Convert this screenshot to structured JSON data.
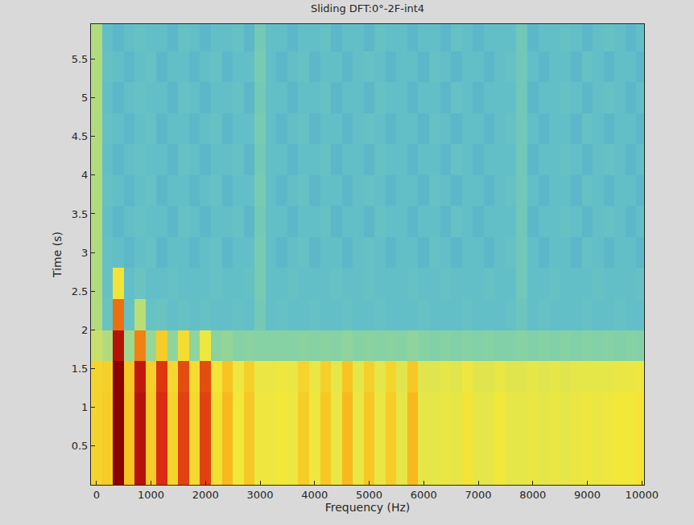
{
  "chart_data": {
    "type": "heatmap",
    "title": "Sliding DFT:0°-2F-int4",
    "x_label": "Frequency (Hz)",
    "y_label": "Time (s)",
    "xlim": [
      -100,
      10040
    ],
    "ylim": [
      0,
      5.95
    ],
    "xticks": [
      0,
      1000,
      2000,
      3000,
      4000,
      5000,
      6000,
      7000,
      8000,
      9000,
      10000
    ],
    "yticks": [
      0.5,
      1,
      1.5,
      2,
      2.5,
      3,
      3.5,
      4,
      4.5,
      5,
      5.5
    ],
    "zlim": [
      0,
      10
    ],
    "x": [
      0,
      200,
      400,
      600,
      800,
      1000,
      1200,
      1400,
      1600,
      1800,
      2000,
      2200,
      2400,
      2600,
      2800,
      3000,
      3200,
      3400,
      3600,
      3800,
      4000,
      4200,
      4400,
      4600,
      4800,
      5000,
      5200,
      5400,
      5600,
      5800,
      6000,
      6200,
      6400,
      6600,
      6800,
      7000,
      7200,
      7400,
      7600,
      7800,
      8000,
      8200,
      8400,
      8600,
      8800,
      9000,
      9200,
      9400,
      9600,
      9800,
      10000
    ],
    "y": [
      0.2,
      0.6,
      1.0,
      1.4,
      1.8,
      2.2,
      2.6,
      3.0,
      3.4,
      3.8,
      4.2,
      4.6,
      5.0,
      5.4,
      5.8
    ],
    "z": [
      [
        7,
        7.2,
        10,
        7.4,
        9.6,
        7.2,
        9.2,
        7,
        9,
        6.9,
        9,
        6.7,
        7.6,
        6.5,
        7.3,
        6.4,
        6.4,
        6.5,
        6.4,
        7.2,
        6.4,
        7.3,
        6.3,
        7.6,
        6.3,
        7.3,
        6.3,
        7.2,
        6.2,
        7.6,
        6.2,
        6.2,
        6.3,
        6.2,
        6.6,
        6.2,
        6.2,
        6.5,
        6.2,
        6.2,
        6.3,
        6.2,
        6.3,
        6.2,
        6.3,
        6.4,
        6.3,
        6.4,
        6.5,
        6.5,
        6.6
      ],
      [
        7,
        7.2,
        10,
        7.4,
        9.6,
        7.2,
        9.2,
        7,
        9,
        6.9,
        9,
        6.7,
        7.6,
        6.5,
        7.3,
        6.4,
        6.4,
        6.5,
        6.4,
        7.2,
        6.4,
        7.3,
        6.3,
        7.6,
        6.3,
        7.3,
        6.3,
        7.2,
        6.2,
        7.6,
        6.2,
        6.2,
        6.3,
        6.2,
        6.6,
        6.2,
        6.2,
        6.5,
        6.2,
        6.2,
        6.3,
        6.2,
        6.3,
        6.2,
        6.3,
        6.4,
        6.3,
        6.4,
        6.5,
        6.5,
        6.6
      ],
      [
        7,
        7.2,
        10,
        7.4,
        9.6,
        7.2,
        9.2,
        7,
        9,
        6.9,
        9,
        6.7,
        7.6,
        6.5,
        7.3,
        6.4,
        6.4,
        6.5,
        6.4,
        7.2,
        6.4,
        7.3,
        6.3,
        7.6,
        6.3,
        7.3,
        6.3,
        7.2,
        6.2,
        7.6,
        6.2,
        6.2,
        6.3,
        6.2,
        6.6,
        6.2,
        6.2,
        6.5,
        6.2,
        6.2,
        6.3,
        6.2,
        6.3,
        6.2,
        6.3,
        6.4,
        6.3,
        6.4,
        6.5,
        6.5,
        6.6
      ],
      [
        7,
        7.1,
        10,
        7.3,
        9.5,
        7.1,
        9.1,
        6.9,
        8.9,
        6.8,
        8.9,
        6.6,
        7.4,
        6.4,
        7.1,
        6.3,
        6.3,
        6.4,
        6.3,
        7,
        6.3,
        7.1,
        6.2,
        7.4,
        6.2,
        7.1,
        6.2,
        7,
        6.1,
        7.3,
        6.1,
        6.1,
        6.2,
        6.1,
        6.4,
        6.1,
        6.1,
        6.3,
        6.1,
        6.1,
        6.2,
        6.1,
        6.2,
        6.1,
        6.2,
        6.2,
        6.2,
        6.2,
        6.3,
        6.3,
        6.4
      ],
      [
        5.5,
        5,
        9.6,
        4.6,
        8.4,
        4.4,
        7.2,
        4.2,
        6.8,
        4.2,
        6.4,
        4.1,
        4.3,
        4,
        4.1,
        4,
        4,
        4,
        4,
        4.1,
        4,
        4.1,
        4,
        4.2,
        4,
        4.1,
        4,
        4.1,
        4,
        4.2,
        4,
        3.9,
        4,
        3.9,
        4,
        3.9,
        4,
        3.9,
        3.9,
        4,
        3.9,
        4,
        3.9,
        4,
        3.9,
        4,
        3.9,
        4,
        3.9,
        4,
        3.9
      ],
      [
        5,
        3.2,
        8.6,
        3.1,
        5.2,
        3.1,
        3.2,
        3,
        3.1,
        3,
        3.1,
        3,
        3,
        3.1,
        3,
        3.5,
        3,
        3.1,
        3,
        3,
        3.1,
        3,
        3,
        3.1,
        3,
        3,
        3.1,
        3,
        3,
        3,
        3.1,
        3,
        3,
        3,
        3.1,
        3,
        3,
        3,
        3.1,
        3.3,
        3,
        3.1,
        3,
        3,
        3,
        3.1,
        3,
        3,
        3.1,
        3,
        3
      ],
      [
        5,
        3.1,
        6.6,
        3,
        3.2,
        3,
        3,
        3.1,
        3,
        3,
        3,
        3.1,
        3,
        3,
        3.1,
        3.6,
        3,
        3,
        3.1,
        3,
        3,
        3,
        3.1,
        3,
        3,
        3.1,
        3,
        3,
        3,
        3.1,
        3,
        3,
        3.1,
        3,
        3,
        3,
        3.1,
        3,
        3,
        3.4,
        3,
        3,
        3.1,
        3,
        3,
        3,
        3.1,
        3,
        3,
        3,
        3.1
      ],
      [
        5,
        3.1,
        3,
        2.9,
        3,
        3.1,
        2.9,
        3,
        3,
        2.9,
        3,
        3.1,
        2.9,
        3,
        3,
        3.6,
        3,
        2.9,
        3,
        3.1,
        2.9,
        3,
        3,
        2.9,
        3,
        3.1,
        3,
        2.9,
        3,
        3,
        2.9,
        3.1,
        3,
        2.9,
        3,
        3,
        2.9,
        3,
        3.1,
        3.4,
        3,
        2.9,
        3,
        3,
        2.9,
        3.1,
        3,
        2.9,
        3,
        3,
        2.9
      ],
      [
        5,
        3,
        2.9,
        3,
        3.1,
        3,
        3,
        2.9,
        3.1,
        3,
        2.9,
        3,
        3,
        3.1,
        2.9,
        3.5,
        3,
        3,
        2.9,
        3,
        3,
        3.1,
        2.9,
        3,
        3,
        2.9,
        3.1,
        3,
        3,
        2.9,
        3,
        3,
        2.9,
        3.1,
        3,
        2.9,
        3,
        3,
        3,
        3.4,
        2.9,
        3,
        3,
        3.1,
        3,
        2.9,
        3,
        3.1,
        3,
        2.9,
        3
      ],
      [
        5,
        3.1,
        3,
        2.9,
        3,
        3.1,
        2.9,
        3,
        3,
        2.9,
        3,
        3.1,
        2.9,
        3,
        3,
        3.6,
        3,
        2.9,
        3,
        3.1,
        2.9,
        3,
        3,
        2.9,
        3,
        3.1,
        3,
        2.9,
        3,
        3,
        2.9,
        3.1,
        3,
        2.9,
        3,
        3,
        2.9,
        3,
        3.1,
        3.4,
        3,
        2.9,
        3,
        3,
        2.9,
        3.1,
        3,
        2.9,
        3,
        3,
        2.9
      ],
      [
        5,
        3,
        2.9,
        3,
        3.1,
        3,
        3,
        2.9,
        3.1,
        3,
        2.9,
        3,
        3,
        3.1,
        2.9,
        3.5,
        3,
        3,
        2.9,
        3,
        3,
        3.1,
        2.9,
        3,
        3,
        2.9,
        3.1,
        3,
        3,
        2.9,
        3,
        3,
        2.9,
        3.1,
        3,
        2.9,
        3,
        3,
        3,
        3.4,
        2.9,
        3,
        3,
        3.1,
        3,
        2.9,
        3,
        3.1,
        3,
        2.9,
        3
      ],
      [
        5,
        3.1,
        3,
        2.9,
        3,
        3.1,
        2.9,
        3,
        3,
        2.9,
        3,
        3.1,
        2.9,
        3,
        3,
        3.6,
        3,
        2.9,
        3,
        3.1,
        2.9,
        3,
        3,
        2.9,
        3,
        3.1,
        3,
        2.9,
        3,
        3,
        2.9,
        3.1,
        3,
        2.9,
        3,
        3,
        2.9,
        3,
        3.1,
        3.4,
        3,
        2.9,
        3,
        3,
        2.9,
        3.1,
        3,
        2.9,
        3,
        3,
        2.9
      ],
      [
        5,
        3,
        2.9,
        3,
        3.1,
        3,
        3,
        2.9,
        3.1,
        3,
        2.9,
        3,
        3,
        3.1,
        2.9,
        3.5,
        3,
        3,
        2.9,
        3,
        3,
        3.1,
        2.9,
        3,
        3,
        2.9,
        3.1,
        3,
        3,
        2.9,
        3,
        3,
        2.9,
        3.1,
        3,
        2.9,
        3,
        3,
        3,
        3.4,
        2.9,
        3,
        3,
        3.1,
        3,
        2.9,
        3,
        3.1,
        3,
        2.9,
        3
      ],
      [
        5,
        3.1,
        3,
        2.9,
        3,
        3.1,
        2.9,
        3,
        3,
        2.9,
        3,
        3.1,
        2.9,
        3,
        3,
        3.6,
        3,
        2.9,
        3,
        3.1,
        2.9,
        3,
        3,
        2.9,
        3,
        3.1,
        3,
        2.9,
        3,
        3,
        2.9,
        3.1,
        3,
        2.9,
        3,
        3,
        2.9,
        3,
        3.1,
        3.4,
        3,
        2.9,
        3,
        3,
        2.9,
        3.1,
        3,
        2.9,
        3,
        3,
        2.9
      ],
      [
        5,
        3,
        2.9,
        3,
        3.1,
        3,
        3,
        2.9,
        3.1,
        3,
        2.9,
        3,
        3,
        3.1,
        2.9,
        3.5,
        3,
        3,
        2.9,
        3,
        3,
        3.1,
        2.9,
        3,
        3,
        2.9,
        3.1,
        3,
        3,
        2.9,
        3,
        3,
        2.9,
        3.1,
        3,
        2.9,
        3,
        3,
        3,
        3.4,
        2.9,
        3,
        3,
        3.1,
        3,
        2.9,
        3,
        3.1,
        3,
        2.9,
        3
      ]
    ]
  }
}
